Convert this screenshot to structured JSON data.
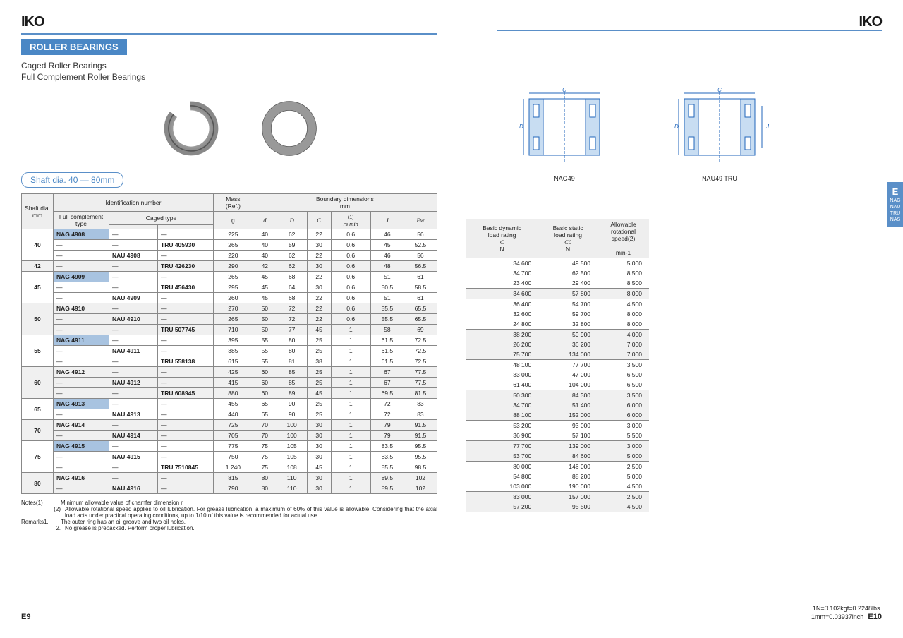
{
  "brand": "IKO",
  "heading": "ROLLER BEARINGS",
  "subtitle1": "Caged Roller Bearings",
  "subtitle2": "Full Complement Roller Bearings",
  "shaft_range": "Shaft dia. 40 — 80mm",
  "diag_labels": {
    "left": "NAG49",
    "right": "NAU49  TRU"
  },
  "side_tab": {
    "main": "E",
    "s1": "NAG",
    "s2": "NAU",
    "s3": "TRU",
    "s4": "NAS"
  },
  "left_headers": {
    "id": "Identification number",
    "mass": "Mass\n(Ref.)",
    "bound": "Boundary dimensions\nmm",
    "shaft": "Shaft\ndia.\nmm",
    "full": "Full complement\ntype",
    "caged": "Caged type",
    "mass_u": "g",
    "d": "d",
    "D": "D",
    "C": "C",
    "rs": "rs min",
    "J": "J",
    "Ew": "Ew",
    "note1": "(1)"
  },
  "right_headers": {
    "c_t": "Basic dynamic\nload rating",
    "c_s": "C",
    "c_u": "N",
    "c0_t": "Basic static\nload rating",
    "c0_s": "C0",
    "c0_u": "N",
    "sp_t": "Allowable\nrotational\nspeed(2)",
    "sp_u": "min-1"
  },
  "rows": [
    {
      "g": "40",
      "shaft": "40",
      "shade": false,
      "r": [
        {
          "fc": "NAG 4908",
          "c1": "—",
          "c2": "—",
          "m": "225",
          "d": "40",
          "D": "62",
          "C": "22",
          "rs": "0.6",
          "J": "46",
          "Ew": "56",
          "Cd": "34 600",
          "C0": "49 500",
          "sp": "5 000"
        },
        {
          "fc": "—",
          "c1": "—",
          "c2": "TRU 405930",
          "m": "265",
          "d": "40",
          "D": "59",
          "C": "30",
          "rs": "0.6",
          "J": "45",
          "Ew": "52.5",
          "Cd": "34 700",
          "C0": "62 500",
          "sp": "8 500"
        },
        {
          "fc": "—",
          "c1": "NAU 4908",
          "c2": "—",
          "m": "220",
          "d": "40",
          "D": "62",
          "C": "22",
          "rs": "0.6",
          "J": "46",
          "Ew": "56",
          "Cd": "23 400",
          "C0": "29 400",
          "sp": "8 500"
        }
      ]
    },
    {
      "g": "42",
      "shaft": "42",
      "shade": true,
      "r": [
        {
          "fc": "—",
          "c1": "—",
          "c2": "TRU 426230",
          "m": "290",
          "d": "42",
          "D": "62",
          "C": "30",
          "rs": "0.6",
          "J": "48",
          "Ew": "56.5",
          "Cd": "34 600",
          "C0": "57 800",
          "sp": "8 000"
        }
      ]
    },
    {
      "g": "45",
      "shaft": "45",
      "shade": false,
      "r": [
        {
          "fc": "NAG 4909",
          "c1": "—",
          "c2": "—",
          "m": "265",
          "d": "45",
          "D": "68",
          "C": "22",
          "rs": "0.6",
          "J": "51",
          "Ew": "61",
          "Cd": "36 400",
          "C0": "54 700",
          "sp": "4 500"
        },
        {
          "fc": "—",
          "c1": "—",
          "c2": "TRU 456430",
          "m": "295",
          "d": "45",
          "D": "64",
          "C": "30",
          "rs": "0.6",
          "J": "50.5",
          "Ew": "58.5",
          "Cd": "32 600",
          "C0": "59 700",
          "sp": "8 000"
        },
        {
          "fc": "—",
          "c1": "NAU 4909",
          "c2": "—",
          "m": "260",
          "d": "45",
          "D": "68",
          "C": "22",
          "rs": "0.6",
          "J": "51",
          "Ew": "61",
          "Cd": "24 800",
          "C0": "32 800",
          "sp": "8 000"
        }
      ]
    },
    {
      "g": "50",
      "shaft": "50",
      "shade": true,
      "r": [
        {
          "fc": "NAG 4910",
          "c1": "—",
          "c2": "—",
          "m": "270",
          "d": "50",
          "D": "72",
          "C": "22",
          "rs": "0.6",
          "J": "55.5",
          "Ew": "65.5",
          "Cd": "38 200",
          "C0": "59 900",
          "sp": "4 000"
        },
        {
          "fc": "—",
          "c1": "NAU 4910",
          "c2": "—",
          "m": "265",
          "d": "50",
          "D": "72",
          "C": "22",
          "rs": "0.6",
          "J": "55.5",
          "Ew": "65.5",
          "Cd": "26 200",
          "C0": "36 200",
          "sp": "7 000"
        },
        {
          "fc": "—",
          "c1": "—",
          "c2": "TRU 507745",
          "m": "710",
          "d": "50",
          "D": "77",
          "C": "45",
          "rs": "1",
          "J": "58",
          "Ew": "69",
          "Cd": "75 700",
          "C0": "134 000",
          "sp": "7 000"
        }
      ]
    },
    {
      "g": "55",
      "shaft": "55",
      "shade": false,
      "r": [
        {
          "fc": "NAG 4911",
          "c1": "—",
          "c2": "—",
          "m": "395",
          "d": "55",
          "D": "80",
          "C": "25",
          "rs": "1",
          "J": "61.5",
          "Ew": "72.5",
          "Cd": "48 100",
          "C0": "77 700",
          "sp": "3 500"
        },
        {
          "fc": "—",
          "c1": "NAU 4911",
          "c2": "—",
          "m": "385",
          "d": "55",
          "D": "80",
          "C": "25",
          "rs": "1",
          "J": "61.5",
          "Ew": "72.5",
          "Cd": "33 000",
          "C0": "47 000",
          "sp": "6 500"
        },
        {
          "fc": "—",
          "c1": "—",
          "c2": "TRU 558138",
          "m": "615",
          "d": "55",
          "D": "81",
          "C": "38",
          "rs": "1",
          "J": "61.5",
          "Ew": "72.5",
          "Cd": "61 400",
          "C0": "104 000",
          "sp": "6 500"
        }
      ]
    },
    {
      "g": "60",
      "shaft": "60",
      "shade": true,
      "r": [
        {
          "fc": "NAG 4912",
          "c1": "—",
          "c2": "—",
          "m": "425",
          "d": "60",
          "D": "85",
          "C": "25",
          "rs": "1",
          "J": "67",
          "Ew": "77.5",
          "Cd": "50 300",
          "C0": "84 300",
          "sp": "3 500"
        },
        {
          "fc": "—",
          "c1": "NAU 4912",
          "c2": "—",
          "m": "415",
          "d": "60",
          "D": "85",
          "C": "25",
          "rs": "1",
          "J": "67",
          "Ew": "77.5",
          "Cd": "34 700",
          "C0": "51 400",
          "sp": "6 000"
        },
        {
          "fc": "—",
          "c1": "—",
          "c2": "TRU 608945",
          "m": "880",
          "d": "60",
          "D": "89",
          "C": "45",
          "rs": "1",
          "J": "69.5",
          "Ew": "81.5",
          "Cd": "88 100",
          "C0": "152 000",
          "sp": "6 000"
        }
      ]
    },
    {
      "g": "65",
      "shaft": "65",
      "shade": false,
      "r": [
        {
          "fc": "NAG 4913",
          "c1": "—",
          "c2": "—",
          "m": "455",
          "d": "65",
          "D": "90",
          "C": "25",
          "rs": "1",
          "J": "72",
          "Ew": "83",
          "Cd": "53 200",
          "C0": "93 000",
          "sp": "3 000"
        },
        {
          "fc": "—",
          "c1": "NAU 4913",
          "c2": "—",
          "m": "440",
          "d": "65",
          "D": "90",
          "C": "25",
          "rs": "1",
          "J": "72",
          "Ew": "83",
          "Cd": "36 900",
          "C0": "57 100",
          "sp": "5 500"
        }
      ]
    },
    {
      "g": "70",
      "shaft": "70",
      "shade": true,
      "r": [
        {
          "fc": "NAG 4914",
          "c1": "—",
          "c2": "—",
          "m": "725",
          "d": "70",
          "D": "100",
          "C": "30",
          "rs": "1",
          "J": "79",
          "Ew": "91.5",
          "Cd": "77 700",
          "C0": "139 000",
          "sp": "3 000"
        },
        {
          "fc": "—",
          "c1": "NAU 4914",
          "c2": "—",
          "m": "705",
          "d": "70",
          "D": "100",
          "C": "30",
          "rs": "1",
          "J": "79",
          "Ew": "91.5",
          "Cd": "53 700",
          "C0": "84 600",
          "sp": "5 000"
        }
      ]
    },
    {
      "g": "75",
      "shaft": "75",
      "shade": false,
      "r": [
        {
          "fc": "NAG 4915",
          "c1": "—",
          "c2": "—",
          "m": "775",
          "d": "75",
          "D": "105",
          "C": "30",
          "rs": "1",
          "J": "83.5",
          "Ew": "95.5",
          "Cd": "80 000",
          "C0": "146 000",
          "sp": "2 500"
        },
        {
          "fc": "—",
          "c1": "NAU 4915",
          "c2": "—",
          "m": "750",
          "d": "75",
          "D": "105",
          "C": "30",
          "rs": "1",
          "J": "83.5",
          "Ew": "95.5",
          "Cd": "54 800",
          "C0": "88 200",
          "sp": "5 000"
        },
        {
          "fc": "—",
          "c1": "—",
          "c2": "TRU 7510845",
          "m": "1 240",
          "d": "75",
          "D": "108",
          "C": "45",
          "rs": "1",
          "J": "85.5",
          "Ew": "98.5",
          "Cd": "103 000",
          "C0": "190 000",
          "sp": "4 500"
        }
      ]
    },
    {
      "g": "80",
      "shaft": "80",
      "shade": true,
      "r": [
        {
          "fc": "NAG 4916",
          "c1": "—",
          "c2": "—",
          "m": "815",
          "d": "80",
          "D": "110",
          "C": "30",
          "rs": "1",
          "J": "89.5",
          "Ew": "102",
          "Cd": "83 000",
          "C0": "157 000",
          "sp": "2 500"
        },
        {
          "fc": "—",
          "c1": "NAU 4916",
          "c2": "—",
          "m": "790",
          "d": "80",
          "D": "110",
          "C": "30",
          "rs": "1",
          "J": "89.5",
          "Ew": "102",
          "Cd": "57 200",
          "C0": "95 500",
          "sp": "4 500"
        }
      ]
    }
  ],
  "notes": {
    "n1_l": "Notes(1)",
    "n1": "Minimum allowable value of chamfer dimension r",
    "n2_l": "(2)",
    "n2": "Allowable rotational speed applies to oil lubrication.  For grease lubrication, a maximum of 60% of this value is allowable.  Considering that the axial load acts under practical operating conditions, up to 1/10 of this value is recommended for actual use.",
    "r1_l": "Remarks1.",
    "r1": "The outer ring has an oil groove and two oil holes.",
    "r2_l": "2.",
    "r2": "No grease is prepacked.  Perform proper lubrication."
  },
  "footer": {
    "left": "E9",
    "right": "E10",
    "conv1": "1N=0.102kgf=0.2248lbs.",
    "conv2": "1mm=0.03937inch"
  }
}
